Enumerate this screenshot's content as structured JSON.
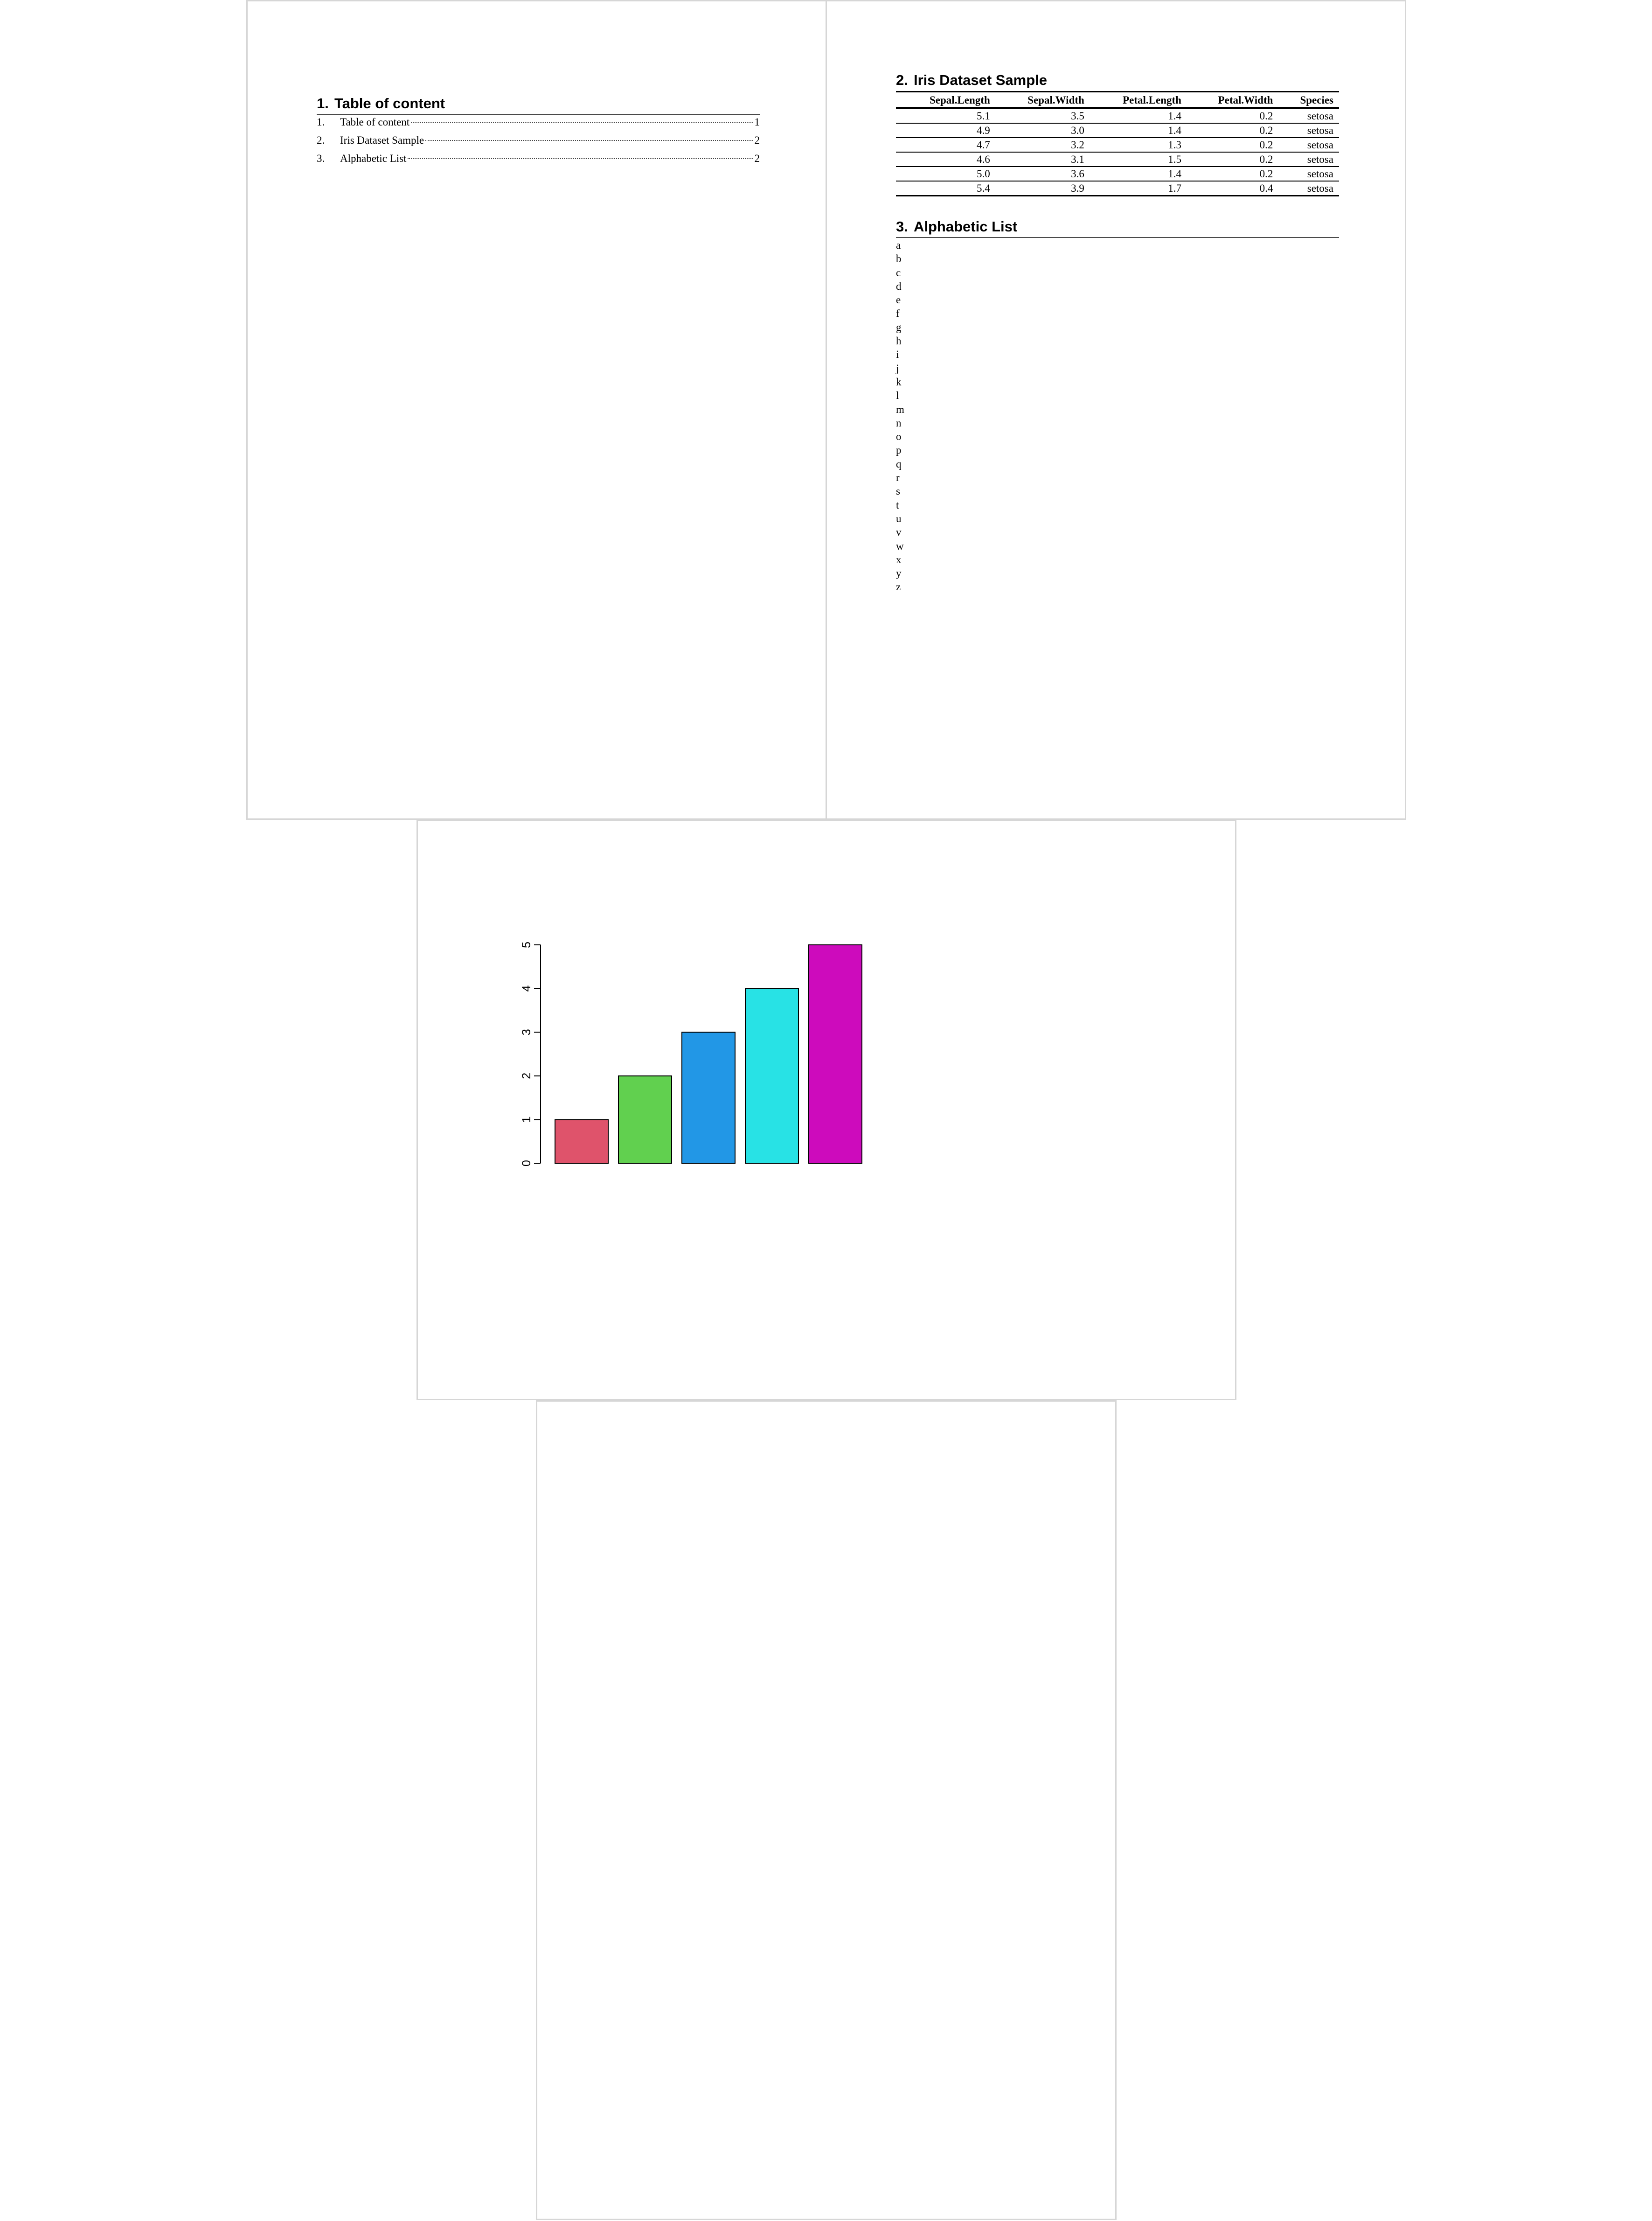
{
  "page1": {
    "heading": {
      "number": "1.",
      "title": "Table of content"
    },
    "toc": [
      {
        "num": "1.",
        "text": "Table of content",
        "page": "1"
      },
      {
        "num": "2.",
        "text": "Iris Dataset Sample",
        "page": "2"
      },
      {
        "num": "3.",
        "text": "Alphabetic List",
        "page": "2"
      }
    ]
  },
  "page2": {
    "section2": {
      "number": "2.",
      "title": "Iris Dataset Sample"
    },
    "table": {
      "columns": [
        "Sepal.Length",
        "Sepal.Width",
        "Petal.Length",
        "Petal.Width",
        "Species"
      ],
      "rows": [
        [
          "5.1",
          "3.5",
          "1.4",
          "0.2",
          "setosa"
        ],
        [
          "4.9",
          "3.0",
          "1.4",
          "0.2",
          "setosa"
        ],
        [
          "4.7",
          "3.2",
          "1.3",
          "0.2",
          "setosa"
        ],
        [
          "4.6",
          "3.1",
          "1.5",
          "0.2",
          "setosa"
        ],
        [
          "5.0",
          "3.6",
          "1.4",
          "0.2",
          "setosa"
        ],
        [
          "5.4",
          "3.9",
          "1.7",
          "0.4",
          "setosa"
        ]
      ]
    },
    "section3": {
      "number": "3.",
      "title": "Alphabetic List"
    },
    "letters": [
      "a",
      "b",
      "c",
      "d",
      "e",
      "f",
      "g",
      "h",
      "i",
      "j",
      "k",
      "l",
      "m",
      "n",
      "o",
      "p",
      "q",
      "r",
      "s",
      "t",
      "u",
      "v",
      "w",
      "x",
      "y",
      "z"
    ]
  },
  "chart_data": {
    "type": "bar",
    "title": "",
    "xlabel": "",
    "ylabel": "",
    "values": [
      1,
      2,
      3,
      4,
      5
    ],
    "colors": [
      "#DF536B",
      "#61D04F",
      "#2297E6",
      "#28E2E5",
      "#CD0BBC"
    ],
    "yticks": [
      "0",
      "1",
      "2",
      "3",
      "4",
      "5"
    ],
    "ylim": [
      0,
      5
    ],
    "grid": false,
    "legend": "none"
  }
}
